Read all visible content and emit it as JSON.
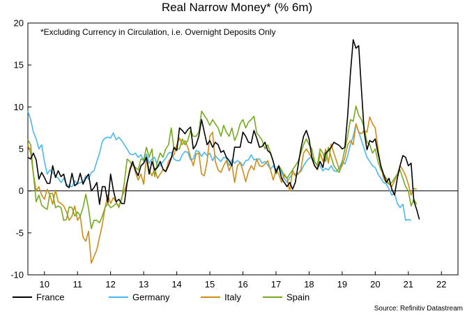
{
  "chart_data": {
    "type": "line",
    "title": "Real Narrow Money* (% 6m)",
    "note": "*Excluding Currency in Circulation, i.e. Overnight Deposits Only",
    "source": "Source: Refinitiv Datastream",
    "x_start": 2009.5,
    "x_step": 0.0833333,
    "xlim": [
      2009.5,
      2022.5
    ],
    "ylim": [
      -10,
      20
    ],
    "yticks": [
      -10,
      -5,
      0,
      5,
      10,
      15,
      20
    ],
    "ytick_labels": [
      "-10",
      "-5",
      "0",
      "5",
      "10",
      "15",
      "20"
    ],
    "xticks": [
      2010,
      2011,
      2012,
      2013,
      2014,
      2015,
      2016,
      2017,
      2018,
      2019,
      2020,
      2021,
      2022
    ],
    "xtick_labels": [
      "10",
      "11",
      "12",
      "13",
      "14",
      "15",
      "16",
      "17",
      "18",
      "19",
      "20",
      "21",
      "22"
    ],
    "zero_line": true,
    "legend_position": "bottom",
    "series": [
      {
        "name": "France",
        "color": "#000000",
        "values": [
          4.0,
          3.8,
          4.5,
          3.7,
          1.4,
          2.2,
          1.6,
          0.9,
          0.9,
          3.0,
          1.6,
          2.4,
          1.7,
          2.0,
          0.6,
          0.4,
          2.1,
          0.6,
          0.9,
          2.1,
          0.8,
          1.5,
          2.0,
          0.0,
          0.4,
          1.0,
          -1.6,
          0.5,
          0.5,
          -1.4,
          2.0,
          0.1,
          -1.3,
          -1.0,
          -1.5,
          -1.5,
          1.0,
          2.4,
          3.5,
          2.5,
          1.8,
          3.0,
          3.3,
          4.0,
          2.0,
          3.5,
          2.5,
          2.8,
          3.5,
          2.6,
          2.3,
          3.0,
          3.9,
          5.2,
          4.8,
          7.5,
          7.2,
          6.8,
          7.3,
          7.6,
          5.0,
          5.5,
          6.5,
          8.5,
          7.0,
          5.5,
          6.0,
          5.2,
          5.8,
          5.5,
          4.6,
          4.8,
          4.0,
          3.6,
          3.0,
          5.2,
          5.2,
          5.2,
          7.0,
          6.5,
          5.8,
          5.7,
          7.2,
          6.3,
          5.2,
          5.3,
          5.8,
          4.8,
          4.5,
          3.5,
          2.2,
          3.0,
          1.5,
          1.0,
          0.5,
          1.0,
          0.2,
          1.0,
          3.0,
          5.0,
          6.5,
          7.2,
          6.2,
          4.0,
          3.0,
          2.6,
          3.5,
          2.8,
          4.5,
          4.8,
          5.2,
          5.8,
          5.6,
          5.4,
          5.0,
          5.2,
          9.0,
          14.0,
          18.0,
          17.0,
          17.3,
          12.0,
          7.0,
          4.9,
          6.0,
          5.8,
          6.2,
          4.5,
          3.0,
          2.0,
          1.0,
          1.5,
          0.2,
          -0.5,
          1.5,
          3.0,
          4.2,
          4.0,
          3.0,
          3.3,
          -1.2,
          -2.2,
          -3.4
        ]
      },
      {
        "name": "Germany",
        "color": "#48b8ef",
        "values": [
          9.5,
          8.5,
          7.0,
          6.2,
          5.0,
          5.5,
          3.5,
          2.0,
          2.5,
          2.2,
          1.8,
          1.5,
          1.0,
          1.5,
          0.8,
          0.6,
          0.5,
          1.2,
          0.8,
          1.0,
          1.0,
          1.8,
          1.4,
          2.2,
          2.4,
          3.5,
          4.5,
          5.9,
          6.3,
          6.4,
          6.3,
          6.9,
          6.1,
          6.4,
          6.0,
          5.5,
          5.0,
          4.4,
          4.3,
          4.5,
          4.0,
          4.3,
          3.5,
          4.4,
          3.3,
          3.8,
          4.0,
          3.0,
          3.0,
          3.5,
          3.9,
          4.5,
          4.6,
          3.8,
          3.6,
          3.6,
          4.3,
          4.7,
          4.6,
          3.7,
          3.8,
          4.8,
          4.7,
          4.1,
          4.6,
          4.2,
          4.5,
          3.6,
          4.2,
          3.8,
          3.5,
          4.0,
          3.9,
          3.0,
          3.7,
          3.3,
          3.6,
          3.4,
          3.0,
          3.6,
          3.7,
          4.3,
          3.7,
          3.8,
          3.8,
          3.3,
          3.5,
          3.1,
          2.6,
          3.0,
          2.5,
          3.0,
          2.2,
          1.5,
          1.0,
          1.6,
          2.0,
          2.0,
          2.1,
          2.3,
          3.0,
          3.5,
          3.9,
          4.0,
          3.5,
          3.0,
          3.0,
          2.4,
          2.7,
          2.5,
          3.0,
          2.4,
          2.3,
          2.8,
          3.5,
          3.2,
          4.2,
          5.5,
          6.5,
          8.0,
          7.0,
          6.0,
          5.0,
          4.0,
          3.5,
          3.0,
          2.8,
          2.0,
          1.5,
          1.0,
          0.8,
          0.2,
          -0.5,
          -0.3,
          -1.5,
          -2.0,
          -1.6,
          -3.5,
          -3.4,
          -3.5
        ]
      },
      {
        "name": "Italy",
        "color": "#d08b14",
        "values": [
          5.5,
          4.5,
          2.0,
          0.0,
          0.5,
          -0.5,
          -1.0,
          0.2,
          -0.5,
          -1.6,
          0.1,
          -1.3,
          -1.5,
          -1.8,
          -2.5,
          -3.5,
          -3.0,
          -1.8,
          -3.5,
          -3.0,
          -5.5,
          -6.0,
          -4.8,
          -8.6,
          -7.8,
          -7.0,
          -5.5,
          -4.0,
          -2.0,
          -0.5,
          -1.5,
          -0.8,
          -1.3,
          -2.0,
          -0.8,
          0.0,
          1.0,
          2.7,
          3.5,
          2.2,
          1.3,
          2.0,
          0.8,
          4.0,
          2.5,
          1.8,
          2.7,
          1.5,
          2.0,
          2.5,
          2.3,
          3.5,
          4.0,
          4.3,
          5.5,
          6.3,
          5.5,
          6.0,
          5.2,
          4.0,
          3.0,
          4.4,
          4.5,
          2.0,
          1.8,
          3.5,
          6.5,
          7.0,
          3.5,
          2.5,
          2.2,
          3.0,
          3.6,
          2.4,
          3.2,
          1.0,
          3.0,
          3.4,
          2.4,
          1.1,
          2.3,
          3.0,
          2.5,
          3.8,
          3.0,
          2.9,
          3.2,
          3.6,
          2.5,
          1.3,
          2.5,
          2.0,
          1.0,
          2.0,
          1.5,
          0.0,
          2.5,
          1.8,
          2.0,
          2.5,
          4.5,
          5.0,
          4.5,
          3.8,
          3.0,
          2.5,
          4.5,
          3.5,
          5.0,
          3.3,
          5.6,
          4.5,
          3.5,
          2.5,
          3.0,
          4.0,
          5.5,
          6.0,
          5.5,
          8.0,
          7.0,
          6.8,
          7.2,
          7.0,
          8.8,
          8.0,
          7.5,
          5.0,
          3.0,
          1.5,
          1.0,
          0.8,
          0.5,
          1.2,
          2.0,
          3.0,
          2.5,
          1.8,
          0.8,
          -0.5,
          0.3,
          0.2
        ]
      },
      {
        "name": "Spain",
        "color": "#74ab1e",
        "values": [
          6.1,
          5.5,
          2.0,
          -1.3,
          -0.5,
          -1.7,
          -2.0,
          -2.2,
          -0.3,
          -0.3,
          -2.0,
          -1.8,
          -2.0,
          -3.5,
          -3.4,
          -1.9,
          -2.0,
          -3.0,
          -2.5,
          -3.0,
          -2.0,
          -0.4,
          -2.1,
          -4.5,
          -3.5,
          -3.5,
          -3.8,
          -3.0,
          -2.0,
          -1.5,
          -2.0,
          -1.8,
          -1.5,
          -1.8,
          -1.0,
          1.0,
          3.8,
          3.5,
          3.0,
          2.8,
          2.5,
          3.8,
          3.7,
          5.2,
          4.0,
          5.0,
          1.7,
          3.5,
          4.5,
          4.0,
          5.0,
          5.5,
          7.5,
          5.0,
          5.0,
          5.0,
          6.2,
          5.5,
          6.0,
          7.2,
          6.5,
          6.5,
          7.0,
          9.5,
          9.0,
          8.5,
          7.8,
          8.5,
          8.0,
          7.5,
          6.5,
          7.8,
          7.0,
          6.5,
          7.5,
          6.0,
          6.8,
          8.0,
          8.5,
          7.5,
          8.2,
          8.5,
          8.9,
          6.9,
          6.5,
          6.0,
          5.0,
          5.5,
          4.5,
          3.5,
          2.0,
          3.0,
          2.5,
          1.8,
          1.5,
          2.0,
          2.5,
          3.0,
          3.5,
          4.5,
          5.5,
          6.2,
          5.5,
          5.0,
          3.5,
          3.0,
          5.0,
          4.5,
          3.5,
          5.2,
          4.0,
          3.0,
          2.5,
          2.2,
          3.5,
          5.0,
          6.5,
          8.5,
          8.3,
          10.1,
          9.0,
          8.5,
          7.5,
          5.8,
          5.5,
          4.5,
          5.0,
          3.5,
          2.5,
          2.0,
          1.5,
          0.8,
          1.0,
          1.5,
          2.0,
          2.5,
          1.5,
          0.5,
          0.0,
          -1.8,
          -1.0,
          -1.6
        ]
      }
    ]
  }
}
